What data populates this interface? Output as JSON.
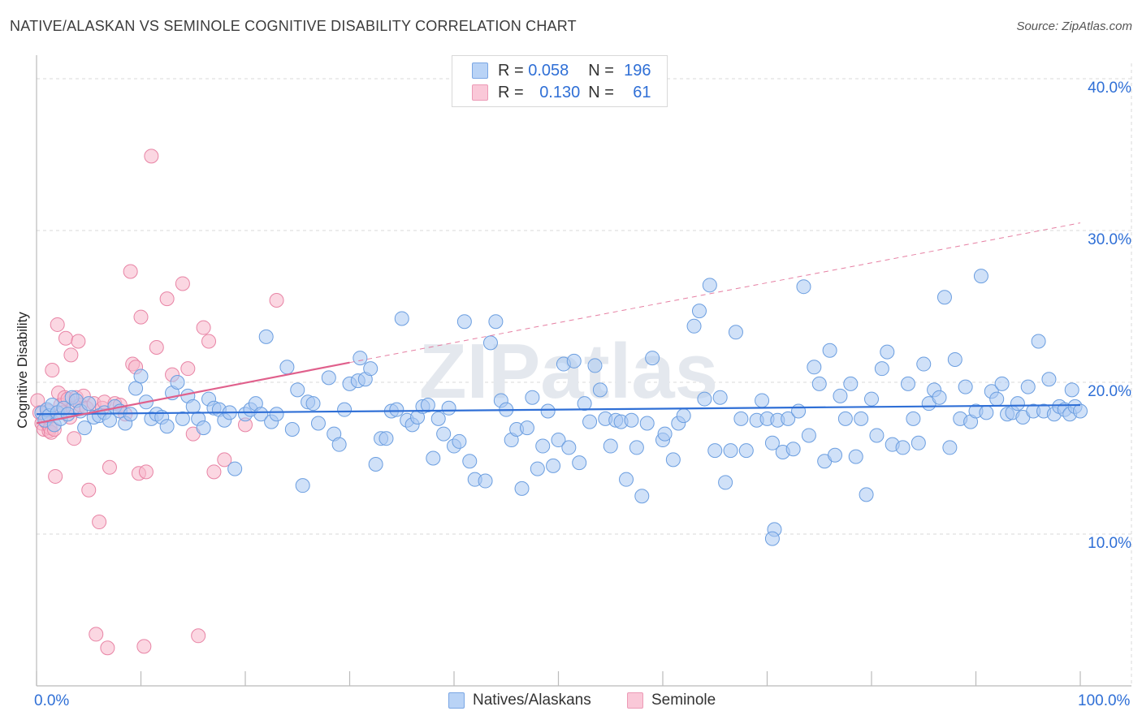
{
  "title": "NATIVE/ALASKAN VS SEMINOLE COGNITIVE DISABILITY CORRELATION CHART",
  "source": "Source: ZipAtlas.com",
  "watermark": "ZIPatlas",
  "legend": {
    "rows": [
      {
        "r_label": "R =",
        "r_value": "0.058",
        "n_label": "N =",
        "n_value": "196",
        "color": "#a9c8f3"
      },
      {
        "r_label": "R =",
        "r_value": "0.130",
        "n_label": "N =",
        "n_value": "61",
        "color": "#f7b7cb"
      }
    ]
  },
  "bottom_legend": [
    {
      "label": "Natives/Alaskans",
      "color": "#a9c8f3"
    },
    {
      "label": "Seminole",
      "color": "#f7b7cb"
    }
  ],
  "colors": {
    "blue_fill": "#a9c8f3",
    "blue_stroke": "#6b9ee0",
    "blue_line": "#2f6fd6",
    "pink_fill": "#f7b7cb",
    "pink_stroke": "#e884a5",
    "pink_line": "#e0608c",
    "tick_text": "#2f6fd6",
    "grid": "#d9d9d9"
  },
  "chart_data": {
    "type": "scatter",
    "title": "NATIVE/ALASKAN VS SEMINOLE COGNITIVE DISABILITY CORRELATION CHART",
    "xlabel": "",
    "ylabel": "Cognitive Disability",
    "xlim": [
      0,
      100
    ],
    "ylim": [
      0,
      40
    ],
    "x_tick_labels": [
      "0.0%",
      "100.0%"
    ],
    "y_ticks": [
      10,
      20,
      30,
      40
    ],
    "y_tick_labels": [
      "10.0%",
      "20.0%",
      "30.0%",
      "40.0%"
    ],
    "grid": true,
    "series": [
      {
        "name": "Natives/Alaskans",
        "trend": {
          "x0": 0,
          "y0": 17.9,
          "x1": 100,
          "y1": 18.5
        },
        "points": [
          [
            0.5,
            18.0
          ],
          [
            0.8,
            17.5
          ],
          [
            1.0,
            18.2
          ],
          [
            1.2,
            17.8
          ],
          [
            1.5,
            18.5
          ],
          [
            1.7,
            17.2
          ],
          [
            2.0,
            18.0
          ],
          [
            2.3,
            17.6
          ],
          [
            2.6,
            18.3
          ],
          [
            3.0,
            17.9
          ],
          [
            3.4,
            19.0
          ],
          [
            3.8,
            18.8
          ],
          [
            4.2,
            18.1
          ],
          [
            4.6,
            17.0
          ],
          [
            5.0,
            18.6
          ],
          [
            5.5,
            17.7
          ],
          [
            6.0,
            17.8
          ],
          [
            6.5,
            18.0
          ],
          [
            7.0,
            17.5
          ],
          [
            7.5,
            18.4
          ],
          [
            8.0,
            18.1
          ],
          [
            8.5,
            17.3
          ],
          [
            9.0,
            17.9
          ],
          [
            9.5,
            19.6
          ],
          [
            10.0,
            20.4
          ],
          [
            10.5,
            18.7
          ],
          [
            11.0,
            17.6
          ],
          [
            11.5,
            17.9
          ],
          [
            12.0,
            17.7
          ],
          [
            12.5,
            17.1
          ],
          [
            13.0,
            19.3
          ],
          [
            13.5,
            20.0
          ],
          [
            14.0,
            17.6
          ],
          [
            14.5,
            19.1
          ],
          [
            15.0,
            18.4
          ],
          [
            15.5,
            17.6
          ],
          [
            16.0,
            17.0
          ],
          [
            16.5,
            18.9
          ],
          [
            17.0,
            18.3
          ],
          [
            17.5,
            18.2
          ],
          [
            18.0,
            17.5
          ],
          [
            18.5,
            18.0
          ],
          [
            19.0,
            14.3
          ],
          [
            20.0,
            17.9
          ],
          [
            20.5,
            18.2
          ],
          [
            21.0,
            18.6
          ],
          [
            21.5,
            17.9
          ],
          [
            22.0,
            23.0
          ],
          [
            22.5,
            17.4
          ],
          [
            23.0,
            17.9
          ],
          [
            24.0,
            21.0
          ],
          [
            24.5,
            16.9
          ],
          [
            25.0,
            19.5
          ],
          [
            25.5,
            13.2
          ],
          [
            26.0,
            18.7
          ],
          [
            26.5,
            18.6
          ],
          [
            27.0,
            17.3
          ],
          [
            28.0,
            20.3
          ],
          [
            28.5,
            16.6
          ],
          [
            29.0,
            15.9
          ],
          [
            29.5,
            18.2
          ],
          [
            30.0,
            19.9
          ],
          [
            30.8,
            20.1
          ],
          [
            31.0,
            21.6
          ],
          [
            31.5,
            20.2
          ],
          [
            32.0,
            20.9
          ],
          [
            32.5,
            14.6
          ],
          [
            33.0,
            16.3
          ],
          [
            33.5,
            16.3
          ],
          [
            34.0,
            18.1
          ],
          [
            34.5,
            18.2
          ],
          [
            35.0,
            24.2
          ],
          [
            35.5,
            17.5
          ],
          [
            36.0,
            17.2
          ],
          [
            36.5,
            17.7
          ],
          [
            37.0,
            18.4
          ],
          [
            37.5,
            18.5
          ],
          [
            38.0,
            15.0
          ],
          [
            38.5,
            17.6
          ],
          [
            39.0,
            16.6
          ],
          [
            39.5,
            18.3
          ],
          [
            40.0,
            15.8
          ],
          [
            40.5,
            16.1
          ],
          [
            41.0,
            24.0
          ],
          [
            41.5,
            14.8
          ],
          [
            42.0,
            13.6
          ],
          [
            43.0,
            13.5
          ],
          [
            43.5,
            22.6
          ],
          [
            44.0,
            24.0
          ],
          [
            44.5,
            18.8
          ],
          [
            45.0,
            18.2
          ],
          [
            45.5,
            16.2
          ],
          [
            46.0,
            16.9
          ],
          [
            46.5,
            13.0
          ],
          [
            47.0,
            17.0
          ],
          [
            47.5,
            19.0
          ],
          [
            48.0,
            14.3
          ],
          [
            48.5,
            15.8
          ],
          [
            49.0,
            18.1
          ],
          [
            49.5,
            14.5
          ],
          [
            50.0,
            16.2
          ],
          [
            50.5,
            21.2
          ],
          [
            51.0,
            15.7
          ],
          [
            51.5,
            21.4
          ],
          [
            52.0,
            14.7
          ],
          [
            52.5,
            18.6
          ],
          [
            53.0,
            17.4
          ],
          [
            53.5,
            21.1
          ],
          [
            54.0,
            19.5
          ],
          [
            54.5,
            17.6
          ],
          [
            55.0,
            15.8
          ],
          [
            55.5,
            17.5
          ],
          [
            56.0,
            17.4
          ],
          [
            56.5,
            13.6
          ],
          [
            57.0,
            17.5
          ],
          [
            57.5,
            15.7
          ],
          [
            58.0,
            12.5
          ],
          [
            58.5,
            17.3
          ],
          [
            59.0,
            21.6
          ],
          [
            60.0,
            16.2
          ],
          [
            60.2,
            16.6
          ],
          [
            61.0,
            14.9
          ],
          [
            61.5,
            17.3
          ],
          [
            62.0,
            17.8
          ],
          [
            63.0,
            23.7
          ],
          [
            63.5,
            24.7
          ],
          [
            64.0,
            18.9
          ],
          [
            64.5,
            26.4
          ],
          [
            65.0,
            15.5
          ],
          [
            65.5,
            19.0
          ],
          [
            66.0,
            13.4
          ],
          [
            66.5,
            15.5
          ],
          [
            67.0,
            23.3
          ],
          [
            67.5,
            17.6
          ],
          [
            68.0,
            15.5
          ],
          [
            69.0,
            17.5
          ],
          [
            69.5,
            18.8
          ],
          [
            70.0,
            17.6
          ],
          [
            70.5,
            16.0
          ],
          [
            70.7,
            10.3
          ],
          [
            70.5,
            9.7
          ],
          [
            71.0,
            17.5
          ],
          [
            71.5,
            15.4
          ],
          [
            72.0,
            17.6
          ],
          [
            72.5,
            15.6
          ],
          [
            73.0,
            18.1
          ],
          [
            73.5,
            26.3
          ],
          [
            74.0,
            16.5
          ],
          [
            74.5,
            21.0
          ],
          [
            75.0,
            19.9
          ],
          [
            75.5,
            14.8
          ],
          [
            76.0,
            22.1
          ],
          [
            76.5,
            15.2
          ],
          [
            77.0,
            19.1
          ],
          [
            77.5,
            17.6
          ],
          [
            78.0,
            19.9
          ],
          [
            78.5,
            15.1
          ],
          [
            79.0,
            17.6
          ],
          [
            79.5,
            12.6
          ],
          [
            80.0,
            18.9
          ],
          [
            80.5,
            16.5
          ],
          [
            81.0,
            20.9
          ],
          [
            81.5,
            22.0
          ],
          [
            82.0,
            15.9
          ],
          [
            83.0,
            15.7
          ],
          [
            83.5,
            19.9
          ],
          [
            84.0,
            17.6
          ],
          [
            84.5,
            16.0
          ],
          [
            85.0,
            21.2
          ],
          [
            85.5,
            18.6
          ],
          [
            86.0,
            19.5
          ],
          [
            86.5,
            19.0
          ],
          [
            87.0,
            25.6
          ],
          [
            87.5,
            15.7
          ],
          [
            88.0,
            21.5
          ],
          [
            88.5,
            17.6
          ],
          [
            89.0,
            19.7
          ],
          [
            89.5,
            17.4
          ],
          [
            90.0,
            18.1
          ],
          [
            90.5,
            27.0
          ],
          [
            91.0,
            18.0
          ],
          [
            91.5,
            19.4
          ],
          [
            92.0,
            18.9
          ],
          [
            92.5,
            19.9
          ],
          [
            93.0,
            17.9
          ],
          [
            93.5,
            18.0
          ],
          [
            94.0,
            18.6
          ],
          [
            94.5,
            17.7
          ],
          [
            95.0,
            19.7
          ],
          [
            95.5,
            18.1
          ],
          [
            96.0,
            22.7
          ],
          [
            96.5,
            18.1
          ],
          [
            97.0,
            20.2
          ],
          [
            97.5,
            17.9
          ],
          [
            98.0,
            18.4
          ],
          [
            98.5,
            18.2
          ],
          [
            99.0,
            17.9
          ],
          [
            99.2,
            19.5
          ],
          [
            99.5,
            18.4
          ],
          [
            100.0,
            18.1
          ]
        ]
      },
      {
        "name": "Seminole",
        "trend": {
          "x0": 0,
          "y0": 17.3,
          "x1": 30,
          "y1": 21.3,
          "dashed_x1": 100,
          "dashed_y1": 30.5
        },
        "points": [
          [
            0.1,
            18.8
          ],
          [
            0.3,
            18.0
          ],
          [
            0.5,
            17.3
          ],
          [
            0.7,
            16.9
          ],
          [
            0.9,
            17.4
          ],
          [
            1.0,
            17.7
          ],
          [
            1.1,
            18.1
          ],
          [
            1.2,
            16.8
          ],
          [
            1.3,
            17.0
          ],
          [
            1.4,
            16.7
          ],
          [
            1.5,
            20.8
          ],
          [
            1.7,
            16.9
          ],
          [
            1.8,
            13.8
          ],
          [
            2.0,
            23.8
          ],
          [
            2.1,
            19.3
          ],
          [
            2.3,
            18.5
          ],
          [
            2.5,
            18.0
          ],
          [
            2.7,
            19.0
          ],
          [
            2.8,
            22.9
          ],
          [
            3.0,
            18.9
          ],
          [
            3.2,
            17.7
          ],
          [
            3.3,
            21.8
          ],
          [
            3.5,
            18.3
          ],
          [
            3.6,
            16.3
          ],
          [
            3.8,
            19.0
          ],
          [
            4.0,
            22.7
          ],
          [
            4.2,
            18.5
          ],
          [
            4.5,
            19.1
          ],
          [
            4.8,
            18.3
          ],
          [
            5.0,
            12.9
          ],
          [
            5.5,
            18.6
          ],
          [
            5.7,
            3.4
          ],
          [
            6.0,
            10.8
          ],
          [
            6.3,
            18.3
          ],
          [
            6.5,
            18.7
          ],
          [
            6.8,
            2.5
          ],
          [
            7.0,
            14.4
          ],
          [
            7.5,
            18.6
          ],
          [
            8.0,
            18.5
          ],
          [
            8.5,
            17.9
          ],
          [
            9.0,
            27.3
          ],
          [
            9.2,
            21.2
          ],
          [
            9.5,
            21.0
          ],
          [
            9.8,
            14.0
          ],
          [
            10.0,
            24.3
          ],
          [
            10.3,
            2.6
          ],
          [
            10.5,
            14.1
          ],
          [
            11.0,
            34.9
          ],
          [
            11.5,
            22.3
          ],
          [
            12.5,
            25.5
          ],
          [
            13.0,
            20.5
          ],
          [
            14.0,
            26.5
          ],
          [
            14.5,
            20.9
          ],
          [
            15.0,
            16.6
          ],
          [
            15.5,
            3.3
          ],
          [
            16.0,
            23.6
          ],
          [
            16.5,
            22.7
          ],
          [
            17.0,
            14.1
          ],
          [
            18.0,
            14.9
          ],
          [
            20.0,
            17.2
          ],
          [
            23.0,
            25.4
          ]
        ]
      }
    ]
  }
}
